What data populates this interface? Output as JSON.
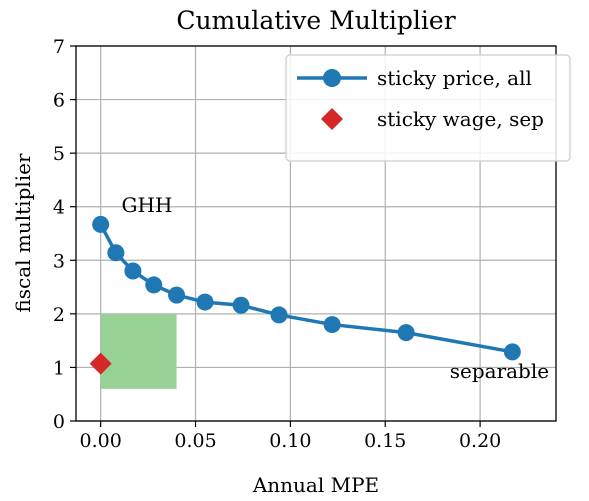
{
  "chart_data": {
    "type": "line",
    "title": "Cumulative Multiplier",
    "xlabel": "Annual MPE",
    "ylabel": "fiscal multiplier",
    "xlim": [
      -0.013,
      0.24
    ],
    "ylim": [
      0,
      7
    ],
    "xticks": [
      0.0,
      0.05,
      0.1,
      0.15,
      0.2
    ],
    "xtick_labels": [
      "0.00",
      "0.05",
      "0.10",
      "0.15",
      "0.20"
    ],
    "yticks": [
      0,
      1,
      2,
      3,
      4,
      5,
      6,
      7
    ],
    "ytick_labels": [
      "0",
      "1",
      "2",
      "3",
      "4",
      "5",
      "6",
      "7"
    ],
    "grid": true,
    "legend_position": "top-right",
    "series": [
      {
        "name": "sticky price, all",
        "color": "#1f77b4",
        "marker": "circle",
        "x": [
          0.0,
          0.008,
          0.017,
          0.028,
          0.04,
          0.055,
          0.074,
          0.094,
          0.122,
          0.161,
          0.217
        ],
        "y": [
          3.67,
          3.14,
          2.8,
          2.54,
          2.35,
          2.22,
          2.16,
          1.98,
          1.8,
          1.65,
          1.29
        ]
      },
      {
        "name": "sticky wage, sep",
        "color": "#d62728",
        "marker": "diamond",
        "x": [
          0.0
        ],
        "y": [
          1.07
        ]
      }
    ],
    "shaded_region": {
      "x": [
        0.0,
        0.04
      ],
      "y": [
        0.6,
        2.0
      ],
      "color": "#98d195"
    },
    "annotations": [
      {
        "text": "GHH",
        "x": 0.011,
        "y": 3.9
      },
      {
        "text": "separable",
        "x": 0.184,
        "y": 0.8
      }
    ]
  }
}
